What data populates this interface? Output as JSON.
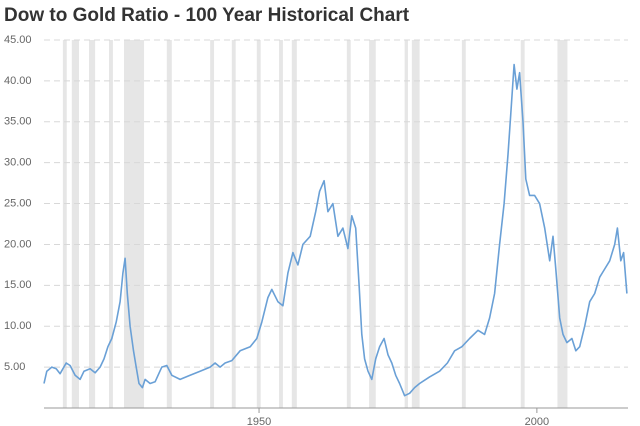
{
  "chart_data": {
    "type": "line",
    "title": "Dow to Gold Ratio - 100 Year Historical Chart",
    "x": [
      1911.3,
      1911.8,
      1912.7,
      1913.5,
      1914.2,
      1915.3,
      1916.0,
      1916.9,
      1917.8,
      1918.5,
      1919.6,
      1920.5,
      1921.4,
      1922.1,
      1922.8,
      1923.5,
      1924.3,
      1925.0,
      1925.5,
      1925.9,
      1926.3,
      1926.8,
      1927.4,
      1927.9,
      1928.4,
      1929.0,
      1929.5,
      1930.4,
      1931.3,
      1932.5,
      1933.4,
      1934.3,
      1935.8,
      1937.6,
      1939.4,
      1941.2,
      1942.1,
      1943.0,
      1943.9,
      1945.1,
      1946.6,
      1948.4,
      1949.6,
      1950.5,
      1951.6,
      1952.3,
      1953.4,
      1954.3,
      1955.2,
      1956.1,
      1957.0,
      1957.9,
      1959.2,
      1960.2,
      1960.9,
      1961.7,
      1962.4,
      1963.3,
      1964.2,
      1965.1,
      1966.0,
      1966.7,
      1967.4,
      1968.0,
      1968.5,
      1969.0,
      1969.6,
      1970.3,
      1971.0,
      1971.7,
      1972.5,
      1973.2,
      1973.9,
      1974.6,
      1975.3,
      1976.2,
      1977.1,
      1978.0,
      1978.9,
      1980.7,
      1982.5,
      1983.9,
      1985.2,
      1986.5,
      1987.9,
      1989.4,
      1990.6,
      1991.5,
      1992.4,
      1993.3,
      1994.1,
      1994.8,
      1995.3,
      1995.9,
      1996.4,
      1996.9,
      1997.5,
      1998.0,
      1998.7,
      1999.6,
      2000.5,
      2001.4,
      2002.3,
      2002.9,
      2003.4,
      2004.1,
      2004.7,
      2005.4,
      2006.3,
      2007.0,
      2007.7,
      2008.6,
      2009.5,
      2010.4,
      2011.3,
      2012.2,
      2013.1,
      2014.0,
      2014.5,
      2015.1,
      2015.6,
      2016.2
    ],
    "values": [
      3.0,
      4.5,
      5.0,
      4.8,
      4.2,
      5.5,
      5.2,
      4.0,
      3.5,
      4.5,
      4.8,
      4.3,
      5.0,
      6.0,
      7.5,
      8.5,
      10.5,
      13,
      16.5,
      18.3,
      14,
      10,
      7,
      5,
      3.0,
      2.5,
      3.5,
      3.0,
      3.2,
      5.0,
      5.2,
      4.0,
      3.5,
      4.0,
      4.5,
      5.0,
      5.5,
      5.0,
      5.5,
      5.8,
      7.0,
      7.5,
      8.5,
      10.5,
      13.5,
      14.5,
      13.0,
      12.5,
      16.5,
      19.0,
      17.5,
      20.0,
      21.0,
      24,
      26.5,
      27.8,
      24,
      25,
      21,
      22,
      19.5,
      23.5,
      22,
      15,
      9,
      6,
      4.5,
      3.5,
      6,
      7.5,
      8.5,
      6.5,
      5.5,
      4,
      3.0,
      1.5,
      1.8,
      2.5,
      3.0,
      3.8,
      4.5,
      5.5,
      7.0,
      7.5,
      8.5,
      9.5,
      9.0,
      11,
      14,
      20,
      25,
      31,
      36,
      42,
      39,
      41,
      35,
      28,
      26,
      26,
      25,
      22,
      18,
      21,
      17,
      11,
      9,
      8,
      8.5,
      7,
      7.5,
      10,
      13,
      14,
      16,
      17,
      18,
      20,
      22,
      18,
      19,
      14
    ],
    "color": "#6aa0d6",
    "recessions": [
      [
        1914.7,
        1915.4
      ],
      [
        1916.3,
        1917.6
      ],
      [
        1919.4,
        1920.5
      ],
      [
        1923.0,
        1923.7
      ],
      [
        1925.7,
        1929.3
      ],
      [
        1933.4,
        1934.3
      ],
      [
        1941.2,
        1941.9
      ],
      [
        1945.1,
        1945.8
      ],
      [
        1949.6,
        1950.3
      ],
      [
        1953.6,
        1954.3
      ],
      [
        1955.9,
        1956.8
      ],
      [
        1965.8,
        1966.5
      ],
      [
        1969.8,
        1971.0
      ],
      [
        1976.2,
        1976.8
      ],
      [
        1977.5,
        1978.9
      ],
      [
        1986.5,
        1987.2
      ],
      [
        1997.1,
        1997.8
      ],
      [
        2003.7,
        2005.5
      ]
    ],
    "recession_color": "#e6e6e6",
    "xlim": [
      1911.3,
      2016.4
    ],
    "xticks": [
      1950,
      2000
    ],
    "ylim": [
      0,
      45
    ],
    "yticks": [
      {
        "value": 5,
        "label": "5.00"
      },
      {
        "value": 10,
        "label": "10.00"
      },
      {
        "value": 15,
        "label": "15.00"
      },
      {
        "value": 20,
        "label": "20.00"
      },
      {
        "value": 25,
        "label": "25.00"
      },
      {
        "value": 30,
        "label": "30.00"
      },
      {
        "value": 35,
        "label": "35.00"
      },
      {
        "value": 40,
        "label": "40.00"
      },
      {
        "value": 45,
        "label": "45.00"
      }
    ],
    "grid": true
  }
}
